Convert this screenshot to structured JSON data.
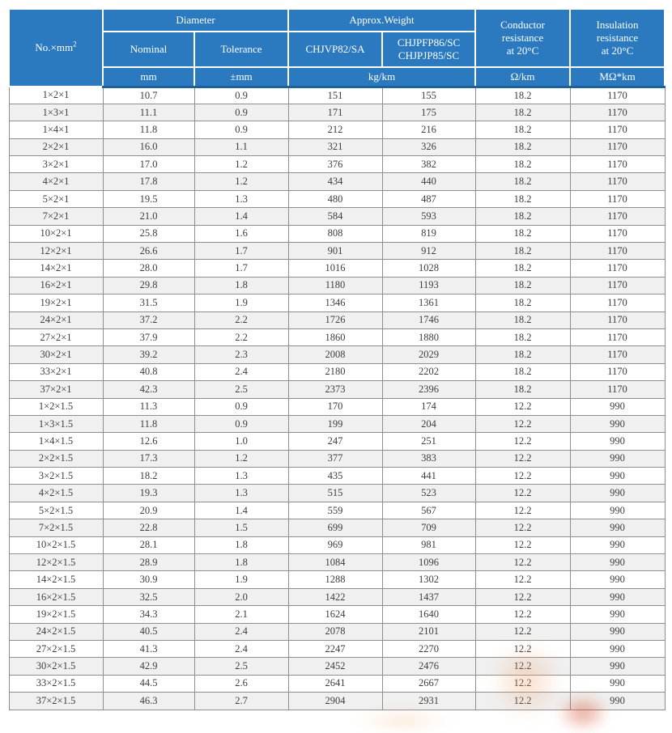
{
  "table": {
    "header": {
      "no_label": "No.×mm",
      "no_sup": "2",
      "diameter": "Diameter",
      "approx_weight": "Approx.Weight",
      "nominal": "Nominal",
      "tolerance": "Tolerance",
      "weight_model_1": "CHJVP82/SA",
      "weight_model_2_l1": "CHJPFP86/SC",
      "weight_model_2_l2": "CHJPJP85/SC",
      "conductor_l1": "Conductor",
      "conductor_l2": "resistance",
      "conductor_l3": "at 20°C",
      "insulation_l1": "Insulation",
      "insulation_l2": "resistance",
      "insulation_l3": "at 20°C",
      "unit_mm": "mm",
      "unit_tolerance_mm": "±mm",
      "unit_weight": "kg/km",
      "unit_conductor": "Ω/km",
      "unit_insulation": "MΩ*km"
    },
    "rows": [
      [
        "1×2×1",
        "10.7",
        "0.9",
        "151",
        "155",
        "18.2",
        "1170"
      ],
      [
        "1×3×1",
        "11.1",
        "0.9",
        "171",
        "175",
        "18.2",
        "1170"
      ],
      [
        "1×4×1",
        "11.8",
        "0.9",
        "212",
        "216",
        "18.2",
        "1170"
      ],
      [
        "2×2×1",
        "16.0",
        "1.1",
        "321",
        "326",
        "18.2",
        "1170"
      ],
      [
        "3×2×1",
        "17.0",
        "1.2",
        "376",
        "382",
        "18.2",
        "1170"
      ],
      [
        "4×2×1",
        "17.8",
        "1.2",
        "434",
        "440",
        "18.2",
        "1170"
      ],
      [
        "5×2×1",
        "19.5",
        "1.3",
        "480",
        "487",
        "18.2",
        "1170"
      ],
      [
        "7×2×1",
        "21.0",
        "1.4",
        "584",
        "593",
        "18.2",
        "1170"
      ],
      [
        "10×2×1",
        "25.8",
        "1.6",
        "808",
        "819",
        "18.2",
        "1170"
      ],
      [
        "12×2×1",
        "26.6",
        "1.7",
        "901",
        "912",
        "18.2",
        "1170"
      ],
      [
        "14×2×1",
        "28.0",
        "1.7",
        "1016",
        "1028",
        "18.2",
        "1170"
      ],
      [
        "16×2×1",
        "29.8",
        "1.8",
        "1180",
        "1193",
        "18.2",
        "1170"
      ],
      [
        "19×2×1",
        "31.5",
        "1.9",
        "1346",
        "1361",
        "18.2",
        "1170"
      ],
      [
        "24×2×1",
        "37.2",
        "2.2",
        "1726",
        "1746",
        "18.2",
        "1170"
      ],
      [
        "27×2×1",
        "37.9",
        "2.2",
        "1860",
        "1880",
        "18.2",
        "1170"
      ],
      [
        "30×2×1",
        "39.2",
        "2.3",
        "2008",
        "2029",
        "18.2",
        "1170"
      ],
      [
        "33×2×1",
        "40.8",
        "2.4",
        "2180",
        "2202",
        "18.2",
        "1170"
      ],
      [
        "37×2×1",
        "42.3",
        "2.5",
        "2373",
        "2396",
        "18.2",
        "1170"
      ],
      [
        "1×2×1.5",
        "11.3",
        "0.9",
        "170",
        "174",
        "12.2",
        "990"
      ],
      [
        "1×3×1.5",
        "11.8",
        "0.9",
        "199",
        "204",
        "12.2",
        "990"
      ],
      [
        "1×4×1.5",
        "12.6",
        "1.0",
        "247",
        "251",
        "12.2",
        "990"
      ],
      [
        "2×2×1.5",
        "17.3",
        "1.2",
        "377",
        "383",
        "12.2",
        "990"
      ],
      [
        "3×2×1.5",
        "18.2",
        "1.3",
        "435",
        "441",
        "12.2",
        "990"
      ],
      [
        "4×2×1.5",
        "19.3",
        "1.3",
        "515",
        "523",
        "12.2",
        "990"
      ],
      [
        "5×2×1.5",
        "20.9",
        "1.4",
        "559",
        "567",
        "12.2",
        "990"
      ],
      [
        "7×2×1.5",
        "22.8",
        "1.5",
        "699",
        "709",
        "12.2",
        "990"
      ],
      [
        "10×2×1.5",
        "28.1",
        "1.8",
        "969",
        "981",
        "12.2",
        "990"
      ],
      [
        "12×2×1.5",
        "28.9",
        "1.8",
        "1084",
        "1096",
        "12.2",
        "990"
      ],
      [
        "14×2×1.5",
        "30.9",
        "1.9",
        "1288",
        "1302",
        "12.2",
        "990"
      ],
      [
        "16×2×1.5",
        "32.5",
        "2.0",
        "1422",
        "1437",
        "12.2",
        "990"
      ],
      [
        "19×2×1.5",
        "34.3",
        "2.1",
        "1624",
        "1640",
        "12.2",
        "990"
      ],
      [
        "24×2×1.5",
        "40.5",
        "2.4",
        "2078",
        "2101",
        "12.2",
        "990"
      ],
      [
        "27×2×1.5",
        "41.3",
        "2.4",
        "2247",
        "2270",
        "12.2",
        "990"
      ],
      [
        "30×2×1.5",
        "42.9",
        "2.5",
        "2452",
        "2476",
        "12.2",
        "990"
      ],
      [
        "33×2×1.5",
        "44.5",
        "2.6",
        "2641",
        "2667",
        "12.2",
        "990"
      ],
      [
        "37×2×1.5",
        "46.3",
        "2.7",
        "2904",
        "2931",
        "12.2",
        "990"
      ]
    ]
  },
  "colors": {
    "header_bg": "#2b7abf",
    "header_divider": "#ffffff",
    "header_bottom_edge": "#1e5f9c",
    "grid_line": "#8e8e8e",
    "row_alt_bg": "#f0f0f0",
    "body_text": "#3d3d3d",
    "watermark_orange": "#eea069",
    "watermark_red": "#d65535"
  }
}
